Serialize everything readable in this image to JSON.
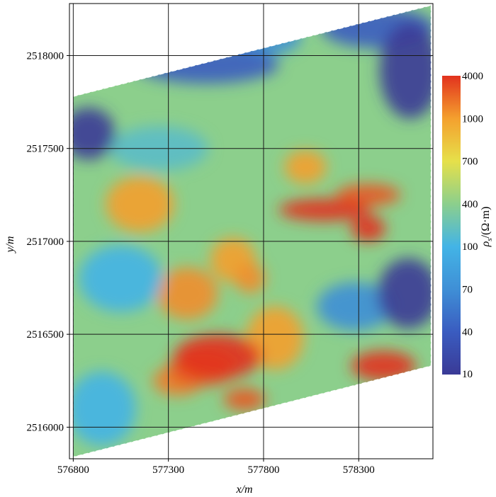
{
  "chart_data": {
    "type": "heatmap",
    "title": "",
    "xlabel": "x/m",
    "ylabel": "y/m",
    "xlim": [
      576780,
      578690
    ],
    "ylim": [
      2515830,
      2518280
    ],
    "x_ticks": [
      576800,
      577300,
      577800,
      578300
    ],
    "x_tick_labels": [
      "576800",
      "577300",
      "577800",
      "578300"
    ],
    "y_ticks": [
      2516000,
      2516500,
      2517000,
      2517500,
      2518000
    ],
    "y_tick_labels": [
      "2516000",
      "2516500",
      "2517000",
      "2517500",
      "2518000"
    ],
    "grid": true,
    "survey_boundary": {
      "left_x": 576800,
      "right_x": 578680,
      "top_left_y": 2517780,
      "top_right_y": 2518270,
      "bottom_left_y": 2515840,
      "bottom_right_y": 2516330
    },
    "colorbar": {
      "label": "ρs/(Ω·m)",
      "label_symbol": "ρ",
      "label_subscript": "s",
      "label_unit": "/(Ω·m)",
      "placement": "right",
      "tick_labels": [
        "10",
        "40",
        "70",
        "100",
        "400",
        "700",
        "1000",
        "4000"
      ],
      "colors": [
        "#3a3a96",
        "#3a5cc0",
        "#3f8fd6",
        "#43b4e6",
        "#8ccf8c",
        "#e6e04a",
        "#f4a02e",
        "#e2321e"
      ]
    },
    "background_level": 400,
    "anomalies": [
      {
        "x": 577560,
        "y": 2516380,
        "value": 4000,
        "rx": 230,
        "ry": 120
      },
      {
        "x": 577480,
        "y": 2516320,
        "value": 3000,
        "rx": 180,
        "ry": 100
      },
      {
        "x": 577350,
        "y": 2516250,
        "value": 2000,
        "rx": 130,
        "ry": 80
      },
      {
        "x": 577700,
        "y": 2516150,
        "value": 3000,
        "rx": 110,
        "ry": 60
      },
      {
        "x": 577860,
        "y": 2516480,
        "value": 1000,
        "rx": 150,
        "ry": 170
      },
      {
        "x": 577400,
        "y": 2516720,
        "value": 1500,
        "rx": 160,
        "ry": 140
      },
      {
        "x": 577730,
        "y": 2516800,
        "value": 1500,
        "rx": 80,
        "ry": 80
      },
      {
        "x": 577640,
        "y": 2516900,
        "value": 1000,
        "rx": 120,
        "ry": 120
      },
      {
        "x": 578120,
        "y": 2517170,
        "value": 4000,
        "rx": 240,
        "ry": 60
      },
      {
        "x": 578350,
        "y": 2517250,
        "value": 3000,
        "rx": 170,
        "ry": 60
      },
      {
        "x": 578350,
        "y": 2517070,
        "value": 4000,
        "rx": 90,
        "ry": 70
      },
      {
        "x": 577150,
        "y": 2517200,
        "value": 1000,
        "rx": 180,
        "ry": 150
      },
      {
        "x": 578020,
        "y": 2517400,
        "value": 1000,
        "rx": 110,
        "ry": 90
      },
      {
        "x": 578430,
        "y": 2516330,
        "value": 4000,
        "rx": 170,
        "ry": 80
      },
      {
        "x": 576880,
        "y": 2517580,
        "value": 10,
        "rx": 140,
        "ry": 140
      },
      {
        "x": 578570,
        "y": 2517920,
        "value": 10,
        "rx": 160,
        "ry": 260
      },
      {
        "x": 577500,
        "y": 2517950,
        "value": 40,
        "rx": 380,
        "ry": 100
      },
      {
        "x": 578400,
        "y": 2518150,
        "value": 40,
        "rx": 300,
        "ry": 110
      },
      {
        "x": 577800,
        "y": 2518100,
        "value": 70,
        "rx": 200,
        "ry": 100
      },
      {
        "x": 578560,
        "y": 2516720,
        "value": 10,
        "rx": 160,
        "ry": 190
      },
      {
        "x": 578280,
        "y": 2516650,
        "value": 70,
        "rx": 200,
        "ry": 130
      },
      {
        "x": 577050,
        "y": 2516800,
        "value": 100,
        "rx": 220,
        "ry": 180
      },
      {
        "x": 576950,
        "y": 2516100,
        "value": 100,
        "rx": 180,
        "ry": 200
      },
      {
        "x": 577250,
        "y": 2517500,
        "value": 200,
        "rx": 260,
        "ry": 120
      }
    ]
  }
}
